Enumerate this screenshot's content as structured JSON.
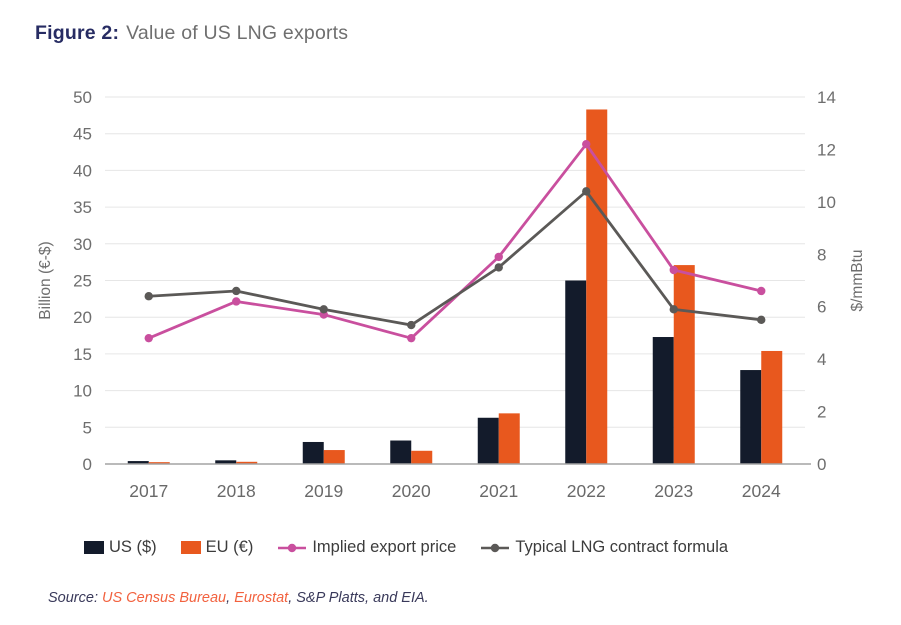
{
  "figure": {
    "label": "Figure 2:",
    "title": "Value of US LNG exports"
  },
  "legend": {
    "items": [
      {
        "label": "US ($)",
        "type": "square",
        "color": "#131b2b"
      },
      {
        "label": "EU (€)",
        "type": "square",
        "color": "#e8581e"
      },
      {
        "label": "Implied export price",
        "type": "line",
        "color": "#c94f9e"
      },
      {
        "label": "Typical LNG contract formula",
        "type": "line",
        "color": "#5b5957"
      }
    ]
  },
  "source": {
    "parts": [
      {
        "text": "Source: ",
        "style": "plain"
      },
      {
        "text": "US Census Bureau",
        "style": "link"
      },
      {
        "text": ", ",
        "style": "plain"
      },
      {
        "text": "Eurostat",
        "style": "link"
      },
      {
        "text": ", S&P Platts, and EIA.",
        "style": "plain"
      }
    ]
  },
  "colors": {
    "us_bar": "#131b2b",
    "eu_bar": "#e8581e",
    "implied_price_line": "#c94f9e",
    "contract_formula_line": "#5b5957",
    "gridline": "#e6e6e6",
    "axis_line": "#a3a3a3",
    "tick_label": "#6e6e6e",
    "title_navy": "#272c63",
    "title_gray": "#6f6f6f",
    "source_link": "#f2613e"
  },
  "chart_data": {
    "type": "bar",
    "subtype": "grouped bars with two overlay lines",
    "categories": [
      "2017",
      "2018",
      "2019",
      "2020",
      "2021",
      "2022",
      "2023",
      "2024"
    ],
    "bar_series": [
      {
        "name": "US ($)",
        "axis": "left",
        "color": "#131b2b",
        "values": [
          0.4,
          0.5,
          3.0,
          3.2,
          6.3,
          25.0,
          17.3,
          12.8
        ]
      },
      {
        "name": "EU (€)",
        "axis": "left",
        "color": "#e8581e",
        "values": [
          0.25,
          0.3,
          1.9,
          1.8,
          6.9,
          48.3,
          27.1,
          15.4
        ]
      }
    ],
    "line_series": [
      {
        "name": "Implied export price",
        "axis": "right",
        "color": "#c94f9e",
        "values": [
          4.8,
          6.2,
          5.7,
          4.8,
          7.9,
          12.2,
          7.4,
          6.6
        ]
      },
      {
        "name": "Typical LNG contract formula",
        "axis": "right",
        "color": "#5b5957",
        "values": [
          6.4,
          6.6,
          5.9,
          5.3,
          7.5,
          10.4,
          5.9,
          5.5
        ]
      }
    ],
    "left_axis": {
      "label": "Billion (€-$)",
      "min": 0,
      "max": 50,
      "step": 5
    },
    "right_axis": {
      "label": "$/mmBtu",
      "min": 0,
      "max": 14,
      "step": 2
    },
    "grid": true,
    "legend_position": "bottom"
  }
}
